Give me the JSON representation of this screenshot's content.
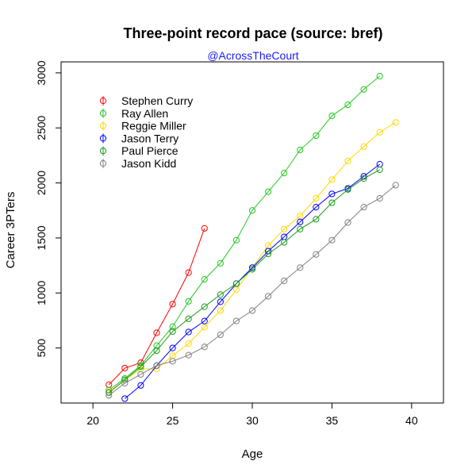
{
  "chart_data": {
    "type": "line",
    "title": "Three-point record pace (source: bref)",
    "subtitle": "@AcrossTheCourt",
    "subtitle_color": "#1a1aff",
    "xlabel": "Age",
    "ylabel": "Career 3PTers",
    "xlim": [
      18,
      42
    ],
    "ylim": [
      0,
      3100
    ],
    "x_ticks": [
      20,
      25,
      30,
      35,
      40
    ],
    "y_ticks": [
      500,
      1000,
      1500,
      2000,
      2500,
      3000
    ],
    "grid": false,
    "legend_position": "top-left",
    "series": [
      {
        "name": "Stephen Curry",
        "color": "#ff0000",
        "x": [
          21,
          22,
          23,
          24,
          25,
          26,
          27
        ],
        "y": [
          166,
          317,
          366,
          638,
          899,
          1185,
          1587
        ]
      },
      {
        "name": "Ray Allen",
        "color": "#22c822",
        "x": [
          21,
          22,
          23,
          24,
          25,
          26,
          27,
          28,
          29,
          30,
          31,
          32,
          33,
          34,
          35,
          36,
          37,
          38
        ],
        "y": [
          117,
          223,
          341,
          522,
          694,
          924,
          1124,
          1270,
          1480,
          1750,
          1920,
          2090,
          2300,
          2430,
          2610,
          2710,
          2850,
          2970
        ]
      },
      {
        "name": "Reggie Miller",
        "color": "#ffd700",
        "x": [
          21,
          22,
          23,
          24,
          25,
          26,
          27,
          28,
          29,
          30,
          31,
          32,
          33,
          34,
          35,
          36,
          37,
          38,
          39
        ],
        "y": [
          100,
          210,
          310,
          310,
          430,
          540,
          690,
          840,
          1030,
          1230,
          1430,
          1580,
          1700,
          1860,
          2030,
          2200,
          2330,
          2460,
          2550
        ]
      },
      {
        "name": "Jason Terry",
        "color": "#0000ff",
        "x": [
          22,
          23,
          24,
          25,
          26,
          27,
          28,
          29,
          30,
          31,
          32,
          33,
          34,
          35,
          36,
          37,
          38
        ],
        "y": [
          40,
          160,
          340,
          500,
          645,
          745,
          920,
          1085,
          1230,
          1380,
          1510,
          1645,
          1780,
          1900,
          1950,
          2060,
          2170
        ]
      },
      {
        "name": "Paul Pierce",
        "color": "#1a9a1a",
        "x": [
          21,
          22,
          23,
          24,
          25,
          26,
          27,
          28,
          29,
          30,
          31,
          32,
          33,
          34,
          35,
          36,
          37,
          38
        ],
        "y": [
          94,
          210,
          330,
          476,
          650,
          765,
          875,
          985,
          1085,
          1215,
          1355,
          1460,
          1580,
          1670,
          1820,
          1940,
          2040,
          2120
        ]
      },
      {
        "name": "Jason Kidd",
        "color": "#808080",
        "x": [
          21,
          22,
          23,
          24,
          25,
          26,
          27,
          28,
          29,
          30,
          31,
          32,
          33,
          34,
          35,
          36,
          37,
          38,
          39
        ],
        "y": [
          70,
          180,
          260,
          340,
          380,
          435,
          510,
          620,
          745,
          840,
          970,
          1110,
          1230,
          1350,
          1480,
          1640,
          1780,
          1860,
          1980
        ]
      }
    ]
  }
}
